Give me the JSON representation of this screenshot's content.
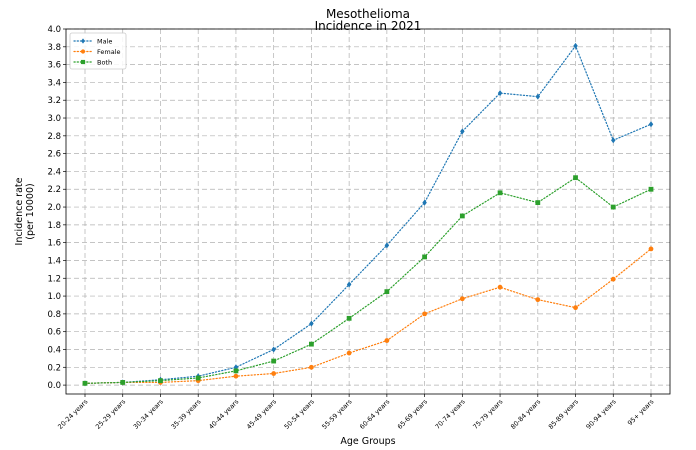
{
  "chart_data": {
    "type": "line",
    "title": [
      "Mesothelioma",
      "Incidence in 2021"
    ],
    "xlabel": "Age Groups",
    "ylabel": [
      "Incidence rate",
      "(per 10000)"
    ],
    "ylim": [
      -0.1,
      4.0
    ],
    "yticks": [
      0.0,
      0.2,
      0.4,
      0.6,
      0.8,
      1.0,
      1.2,
      1.4,
      1.6,
      1.8,
      2.0,
      2.2,
      2.4,
      2.6,
      2.8,
      3.0,
      3.2,
      3.4,
      3.6,
      3.8,
      4.0
    ],
    "grid": true,
    "legend_position": "top-left",
    "categories": [
      "20-24 years",
      "25-29 years",
      "30-34 years",
      "35-39 years",
      "40-44 years",
      "45-49 years",
      "50-54 years",
      "55-59 years",
      "60-64 years",
      "65-69 years",
      "70-74 years",
      "75-79 years",
      "80-84 years",
      "85-89 years",
      "90-94 years",
      "95+ years"
    ],
    "series": [
      {
        "name": "Male",
        "color": "#1f77b4",
        "marker": "diamond",
        "values": [
          0.02,
          0.03,
          0.06,
          0.1,
          0.2,
          0.4,
          0.69,
          1.13,
          1.57,
          2.05,
          2.85,
          3.28,
          3.24,
          3.81,
          2.75,
          2.93
        ]
      },
      {
        "name": "Female",
        "color": "#ff7f0e",
        "marker": "circle",
        "values": [
          0.02,
          0.03,
          0.03,
          0.05,
          0.1,
          0.13,
          0.2,
          0.36,
          0.5,
          0.8,
          0.97,
          1.1,
          0.96,
          0.87,
          1.19,
          1.53
        ]
      },
      {
        "name": "Both",
        "color": "#2ca02c",
        "marker": "square",
        "values": [
          0.02,
          0.03,
          0.05,
          0.08,
          0.16,
          0.27,
          0.46,
          0.75,
          1.05,
          1.44,
          1.9,
          2.16,
          2.05,
          2.33,
          2.0,
          2.2
        ]
      }
    ]
  }
}
